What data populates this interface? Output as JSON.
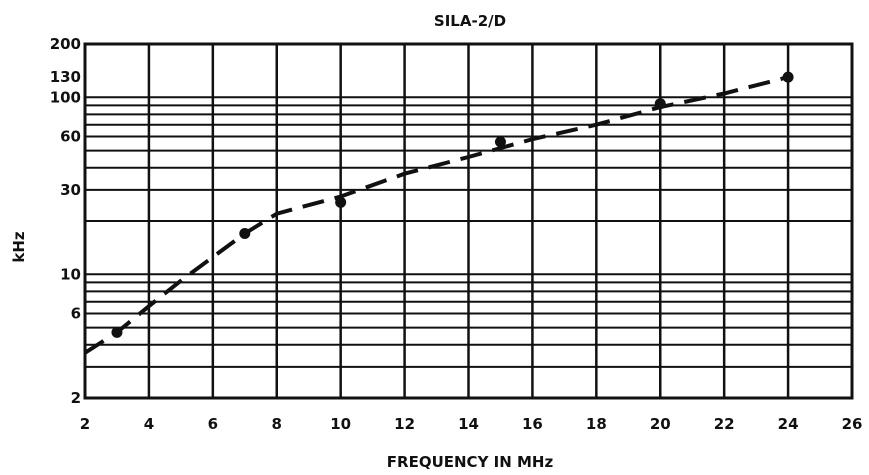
{
  "chart_data": {
    "type": "line",
    "title": "SILA-2/D",
    "xlabel": "FREQUENCY IN MHz",
    "ylabel": "kHz",
    "y_scale": "log",
    "xlim": [
      2,
      26
    ],
    "ylim": [
      2,
      200
    ],
    "x_ticks": [
      "2",
      "4",
      "6",
      "8",
      "10",
      "12",
      "14",
      "16",
      "18",
      "20",
      "22",
      "24",
      "26"
    ],
    "y_ticks": [
      {
        "value": 200,
        "label": "200"
      },
      {
        "value": 130,
        "label": "130"
      },
      {
        "value": 100,
        "label": "100"
      },
      {
        "value": 60,
        "label": "60"
      },
      {
        "value": 30,
        "label": "30"
      },
      {
        "value": 10,
        "label": "10"
      },
      {
        "value": 6,
        "label": "6"
      },
      {
        "value": 2,
        "label": "2"
      }
    ],
    "grid": true,
    "series": [
      {
        "style": "dashed",
        "points": [
          {
            "x": 2.0,
            "y": 3.6
          },
          {
            "x": 3.0,
            "y": 4.7
          },
          {
            "x": 4.0,
            "y": 6.6
          },
          {
            "x": 5.0,
            "y": 9.2
          },
          {
            "x": 6.0,
            "y": 12.5
          },
          {
            "x": 7.0,
            "y": 17
          },
          {
            "x": 8.0,
            "y": 22
          },
          {
            "x": 10.0,
            "y": 27.5
          },
          {
            "x": 12.0,
            "y": 37
          },
          {
            "x": 14.0,
            "y": 46
          },
          {
            "x": 16.0,
            "y": 58
          },
          {
            "x": 18.0,
            "y": 70
          },
          {
            "x": 20.0,
            "y": 88
          },
          {
            "x": 22.0,
            "y": 105
          },
          {
            "x": 24.0,
            "y": 130
          }
        ],
        "markers": [
          {
            "x": 3.0,
            "y": 4.7
          },
          {
            "x": 7.0,
            "y": 17
          },
          {
            "x": 10.0,
            "y": 25.5
          },
          {
            "x": 15.0,
            "y": 56
          },
          {
            "x": 20.0,
            "y": 92
          },
          {
            "x": 24.0,
            "y": 130
          }
        ]
      }
    ]
  }
}
